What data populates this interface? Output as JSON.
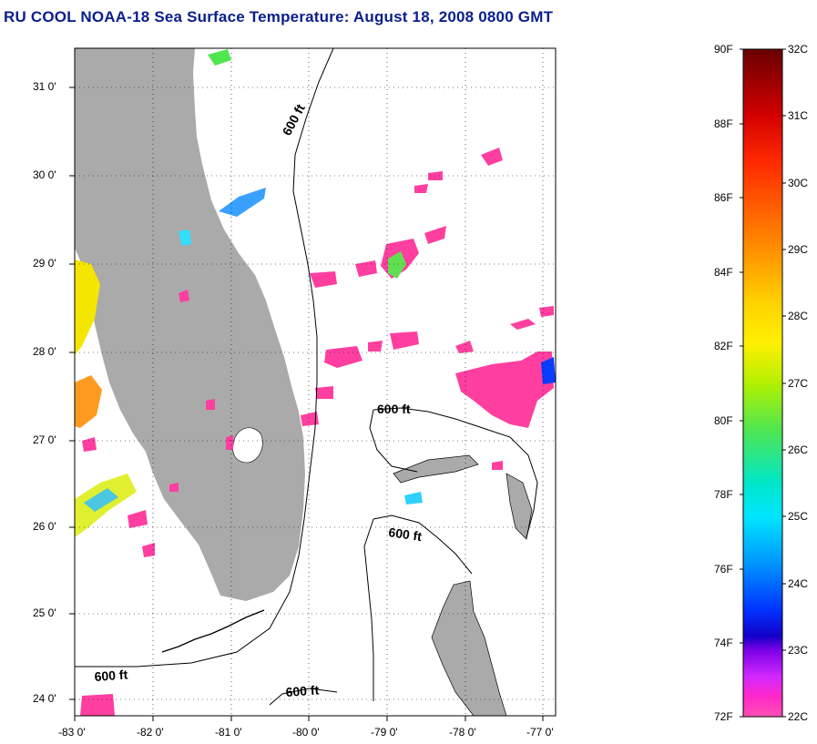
{
  "title": "RU COOL  NOAA-18  Sea Surface Temperature:  August 18, 2008 0800 GMT",
  "map": {
    "lon_range": [
      -83,
      -76.85
    ],
    "lat_range": [
      23.85,
      31.45
    ],
    "lon_ticks": [
      {
        "value": -83,
        "label": "-83 0'"
      },
      {
        "value": -82,
        "label": "-82 0'"
      },
      {
        "value": -81,
        "label": "-81 0'"
      },
      {
        "value": -80,
        "label": "-80 0'"
      },
      {
        "value": -79,
        "label": "-79 0'"
      },
      {
        "value": -78,
        "label": "-78 0'"
      },
      {
        "value": -77,
        "label": "-77 0'"
      }
    ],
    "lat_ticks": [
      {
        "value": 31,
        "label": "31 0'"
      },
      {
        "value": 30,
        "label": "30 0'"
      },
      {
        "value": 29,
        "label": "29 0'"
      },
      {
        "value": 28,
        "label": "28 0'"
      },
      {
        "value": 27,
        "label": "27 0'"
      },
      {
        "value": 26,
        "label": "26 0'"
      },
      {
        "value": 25,
        "label": "25 0'"
      },
      {
        "value": 24,
        "label": "24 0'"
      }
    ],
    "grid": "dotted",
    "land_color": "#aaaaaa",
    "contour_label": "600 ft",
    "contour_labels": [
      {
        "text": "600 ft",
        "lon": -80.1,
        "lat": 30.6,
        "rotate": -62
      },
      {
        "text": "600 ft",
        "lon": -79.3,
        "lat": 27.35,
        "rotate": 0
      },
      {
        "text": "600 ft",
        "lon": -78.95,
        "lat": 25.95,
        "rotate": 8
      },
      {
        "text": "600 ft",
        "lon": -82.75,
        "lat": 24.3,
        "rotate": -4
      },
      {
        "text": "600 ft",
        "lon": -80.3,
        "lat": 24.05,
        "rotate": -4
      }
    ]
  },
  "colorbar": {
    "fahrenheit_labels": [
      "90F",
      "88F",
      "86F",
      "84F",
      "82F",
      "80F",
      "78F",
      "76F",
      "74F",
      "72F"
    ],
    "celsius_labels": [
      "32C",
      "31C",
      "30C",
      "29C",
      "28C",
      "27C",
      "26C",
      "25C",
      "24C",
      "23C",
      "22C"
    ],
    "range_f": [
      72,
      90
    ],
    "range_c": [
      22,
      32
    ],
    "colors_top_to_bottom": [
      "#6a0000",
      "#d40000",
      "#ff2a00",
      "#ff7f00",
      "#ffc800",
      "#fff000",
      "#b4f000",
      "#50e650",
      "#00e6b4",
      "#00e6ff",
      "#0096ff",
      "#0032ff",
      "#1400c8",
      "#b400ff",
      "#ff28c8",
      "#ff50b4"
    ]
  }
}
